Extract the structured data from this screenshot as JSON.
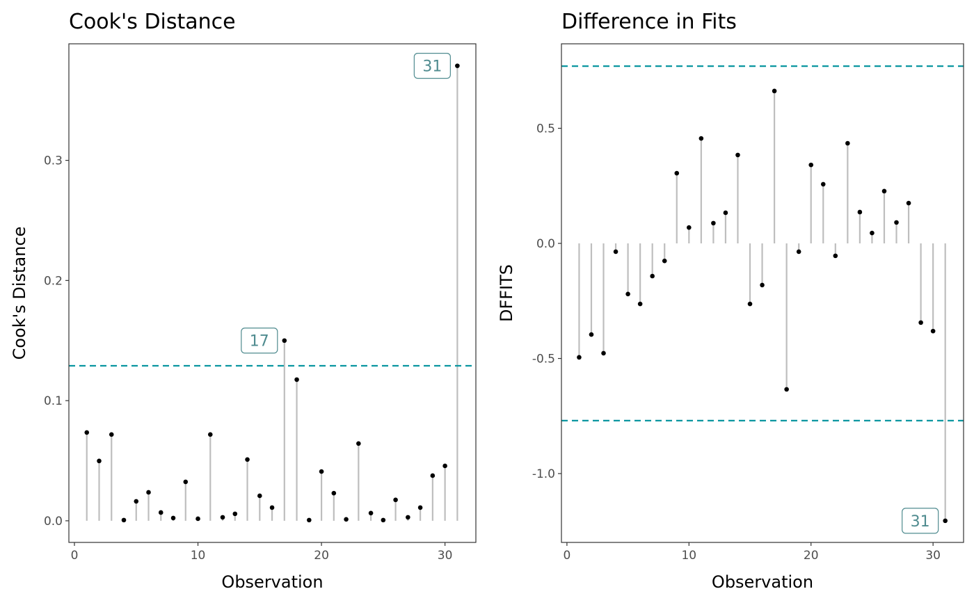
{
  "chart_data": [
    {
      "type": "scatter",
      "style": "lollipop",
      "title": "Cook's Distance",
      "xlabel": "Observation",
      "ylabel": "Cook's Distance",
      "xlim": [
        -0.45,
        32.5
      ],
      "ylim": [
        -0.018,
        0.397
      ],
      "xticks": [
        0,
        10,
        20,
        30
      ],
      "xtick_labels": [
        "0",
        "10",
        "20",
        "30"
      ],
      "yticks": [
        0.0,
        0.1,
        0.2,
        0.3
      ],
      "ytick_labels": [
        "0.0",
        "0.1",
        "0.2",
        "0.3"
      ],
      "x": [
        1,
        2,
        3,
        4,
        5,
        6,
        7,
        8,
        9,
        10,
        11,
        12,
        13,
        14,
        15,
        16,
        17,
        18,
        19,
        20,
        21,
        22,
        23,
        24,
        25,
        26,
        27,
        28,
        29,
        30,
        31
      ],
      "y": [
        0.0735,
        0.0498,
        0.0718,
        0.0006,
        0.0162,
        0.0237,
        0.0069,
        0.0023,
        0.0324,
        0.0017,
        0.0718,
        0.0029,
        0.0058,
        0.051,
        0.0208,
        0.011,
        0.15,
        0.1175,
        0.0006,
        0.041,
        0.023,
        0.0012,
        0.0643,
        0.0064,
        0.0006,
        0.0174,
        0.0029,
        0.011,
        0.0376,
        0.0457,
        0.3787
      ],
      "thresholds": [
        0.129
      ],
      "labeled_points": [
        {
          "x": 17,
          "label": "17"
        },
        {
          "x": 31,
          "label": "31"
        }
      ],
      "grid": false
    },
    {
      "type": "scatter",
      "style": "lollipop",
      "title": "Difference in Fits",
      "xlabel": "Observation",
      "ylabel": "DFFITS",
      "xlim": [
        -0.45,
        32.5
      ],
      "ylim": [
        -1.299,
        0.867
      ],
      "xticks": [
        0,
        10,
        20,
        30
      ],
      "xtick_labels": [
        "0",
        "10",
        "20",
        "30"
      ],
      "yticks": [
        -1.0,
        -0.5,
        0.0,
        0.5
      ],
      "ytick_labels": [
        "-1.0",
        "-0.5",
        "0.0",
        "0.5"
      ],
      "x": [
        1,
        2,
        3,
        4,
        5,
        6,
        7,
        8,
        9,
        10,
        11,
        12,
        13,
        14,
        15,
        16,
        17,
        18,
        19,
        20,
        21,
        22,
        23,
        24,
        25,
        26,
        27,
        28,
        29,
        30,
        31
      ],
      "y": [
        -0.495,
        -0.396,
        -0.477,
        -0.036,
        -0.22,
        -0.263,
        -0.142,
        -0.076,
        0.305,
        0.069,
        0.456,
        0.088,
        0.133,
        0.384,
        -0.263,
        -0.181,
        0.662,
        -0.634,
        -0.036,
        0.341,
        0.257,
        -0.054,
        0.435,
        0.136,
        0.045,
        0.227,
        0.091,
        0.175,
        -0.344,
        -0.381,
        -1.205
      ],
      "thresholds": [
        0.77,
        -0.77
      ],
      "labeled_points": [
        {
          "x": 31,
          "label": "31"
        }
      ],
      "grid": false
    }
  ],
  "colors": {
    "threshold": "#0a96a0",
    "stem": "#bebebe",
    "point": "#000000",
    "label_text": "#4f8b8f",
    "label_border": "#4f8b8f"
  }
}
